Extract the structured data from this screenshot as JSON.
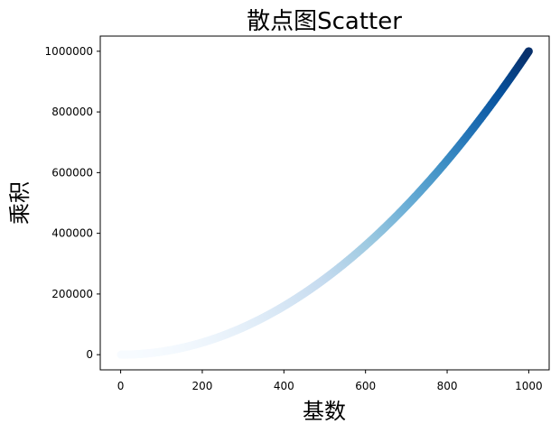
{
  "chart_data": {
    "type": "scatter",
    "title": "散点图Scatter",
    "xlabel": "基数",
    "ylabel": "乘积",
    "xlim": [
      -50,
      1050
    ],
    "ylim": [
      -50000,
      1050000
    ],
    "x_ticks": [
      0,
      200,
      400,
      600,
      800,
      1000
    ],
    "y_ticks": [
      0,
      200000,
      400000,
      600000,
      800000,
      1000000
    ],
    "x_tick_labels": [
      "0",
      "200",
      "400",
      "600",
      "800",
      "1000"
    ],
    "y_tick_labels": [
      "0",
      "200000",
      "400000",
      "600000",
      "800000",
      "1000000"
    ],
    "grid": false,
    "colormap": "Blues",
    "color_light": "#f7fbff",
    "color_dark": "#08306b",
    "series": [
      {
        "x_start": 1,
        "x_end": 1000,
        "x_step": 1,
        "y_formula": "x*x",
        "color_by": "y"
      }
    ]
  }
}
